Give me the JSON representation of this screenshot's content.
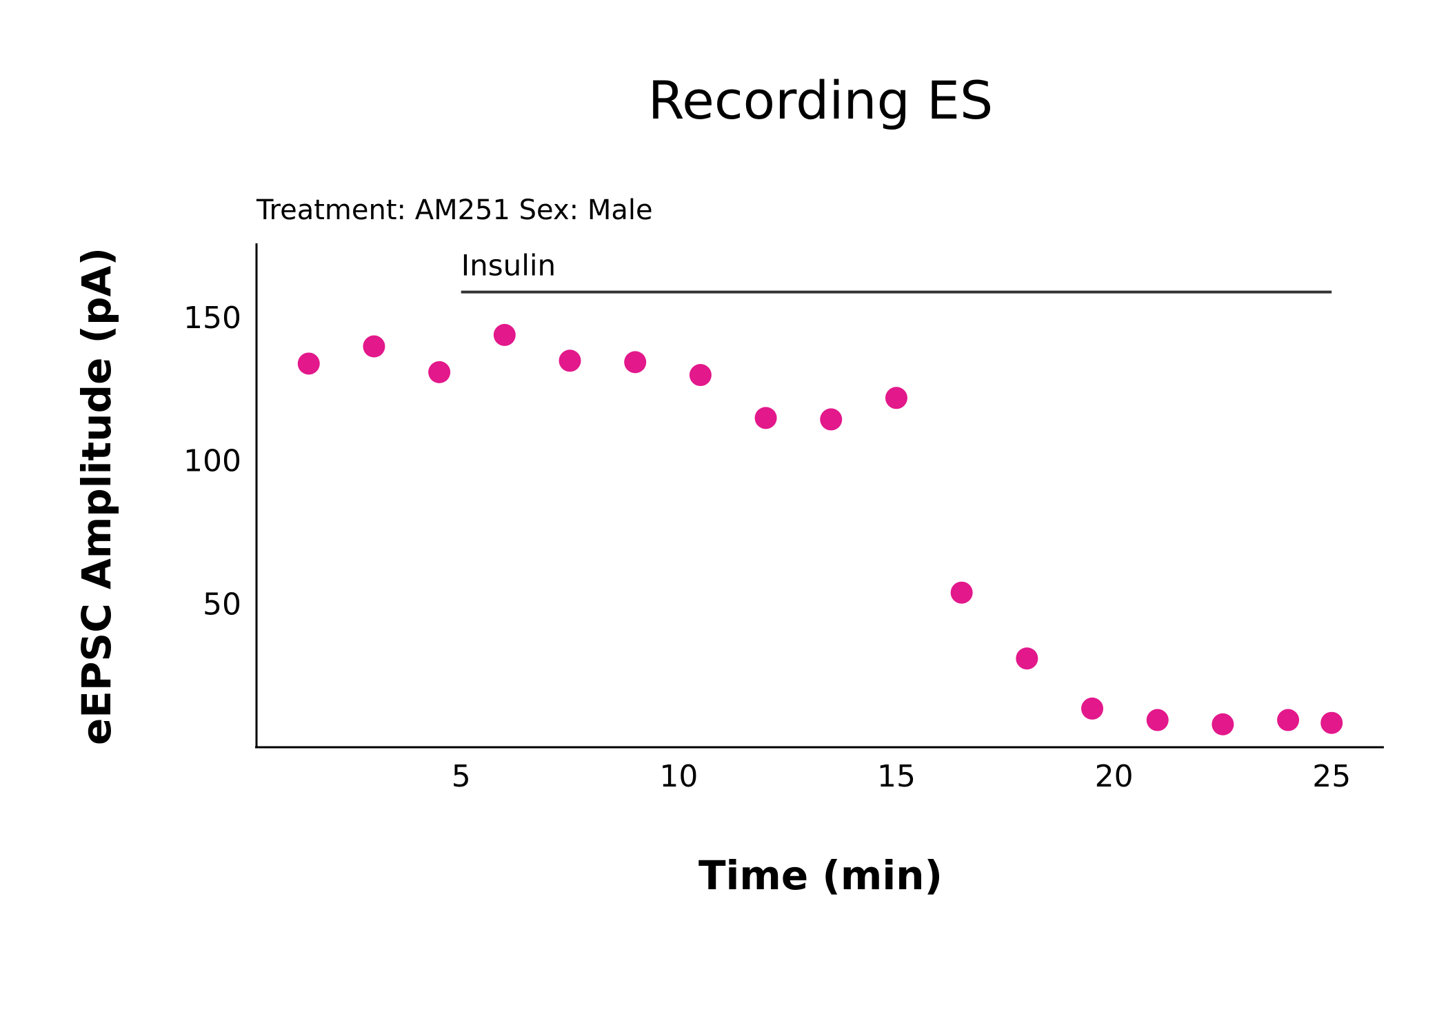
{
  "chart_data": {
    "type": "scatter",
    "title": "Recording ES",
    "subtitle": "Treatment: AM251  Sex: Male",
    "xlabel": "Time (min)",
    "ylabel": "eEPSC Amplitude (pA)",
    "xlim": [
      0.3,
      26.2
    ],
    "ylim": [
      0,
      176
    ],
    "xticks": [
      5,
      10,
      15,
      20,
      25
    ],
    "yticks": [
      50,
      100,
      150
    ],
    "grid": false,
    "marker_color": "#e2188b",
    "annotation": {
      "label": "Insulin",
      "x_start": 5,
      "x_end": 25,
      "y": 159
    },
    "series": [
      {
        "x": [
          1.5,
          3,
          4.5,
          6,
          7.5,
          9,
          10.5,
          12,
          13.5,
          15,
          16.5,
          18,
          19.5,
          21,
          22.5,
          24,
          25
        ],
        "y": [
          134,
          140,
          131,
          144,
          135,
          134.5,
          130,
          115,
          114.5,
          122,
          54,
          31,
          13.5,
          9.5,
          8,
          9.5,
          8.5
        ]
      }
    ]
  }
}
